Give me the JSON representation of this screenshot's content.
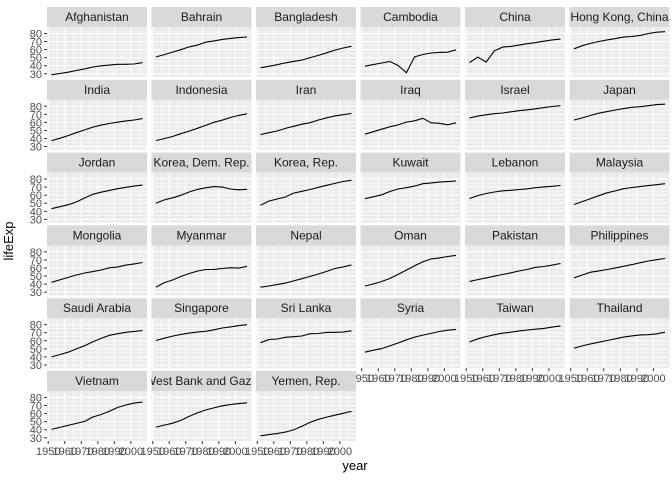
{
  "chart_data": {
    "type": "line",
    "title": "",
    "xlabel": "year",
    "ylabel": "lifeExp",
    "facet_by": "country",
    "ncol": 6,
    "xlim": [
      1952,
      2007
    ],
    "ylim": [
      26,
      88
    ],
    "x_ticks": [
      1950,
      1960,
      1970,
      1980,
      1990,
      2000
    ],
    "y_ticks": [
      30,
      40,
      50,
      60,
      70,
      80
    ],
    "grid": true,
    "x": [
      1952,
      1957,
      1962,
      1967,
      1972,
      1977,
      1982,
      1987,
      1992,
      1997,
      2002,
      2007
    ],
    "series": [
      {
        "name": "Afghanistan",
        "values": [
          28.8,
          30.3,
          32.0,
          34.0,
          36.1,
          38.4,
          39.9,
          40.8,
          41.7,
          41.8,
          42.1,
          43.8
        ]
      },
      {
        "name": "Bahrain",
        "values": [
          50.9,
          53.8,
          56.9,
          59.9,
          63.3,
          65.6,
          69.1,
          70.8,
          72.6,
          73.9,
          74.8,
          75.6
        ]
      },
      {
        "name": "Bangladesh",
        "values": [
          37.5,
          39.3,
          41.2,
          43.5,
          45.3,
          46.9,
          50.0,
          52.8,
          56.0,
          59.4,
          62.0,
          64.1
        ]
      },
      {
        "name": "Cambodia",
        "values": [
          39.4,
          41.4,
          43.4,
          45.4,
          40.3,
          31.2,
          51.0,
          53.9,
          55.8,
          56.5,
          56.8,
          59.7
        ]
      },
      {
        "name": "China",
        "values": [
          44.0,
          50.5,
          44.5,
          58.4,
          63.1,
          64.0,
          65.5,
          67.3,
          68.7,
          70.4,
          72.0,
          73.0
        ]
      },
      {
        "name": "Hong Kong, China",
        "values": [
          61.0,
          64.8,
          67.7,
          70.0,
          72.0,
          73.6,
          75.5,
          76.2,
          77.6,
          80.0,
          81.5,
          82.2
        ]
      },
      {
        "name": "India",
        "values": [
          37.4,
          40.2,
          43.6,
          47.2,
          50.7,
          54.2,
          56.6,
          58.6,
          60.2,
          61.8,
          62.9,
          64.7
        ]
      },
      {
        "name": "Indonesia",
        "values": [
          37.5,
          39.9,
          42.5,
          46.0,
          49.2,
          52.7,
          56.2,
          60.1,
          62.7,
          66.0,
          68.6,
          70.7
        ]
      },
      {
        "name": "Iran",
        "values": [
          44.9,
          47.2,
          49.3,
          52.5,
          55.2,
          57.7,
          59.6,
          63.0,
          65.7,
          68.0,
          69.5,
          71.0
        ]
      },
      {
        "name": "Iraq",
        "values": [
          45.3,
          48.4,
          51.5,
          54.5,
          56.9,
          60.4,
          62.0,
          65.0,
          59.5,
          58.8,
          57.0,
          59.5
        ]
      },
      {
        "name": "Israel",
        "values": [
          65.4,
          67.8,
          69.4,
          70.8,
          71.6,
          73.1,
          74.5,
          75.6,
          76.9,
          78.3,
          79.7,
          80.7
        ]
      },
      {
        "name": "Japan",
        "values": [
          63.0,
          65.5,
          68.7,
          71.4,
          73.4,
          75.4,
          77.1,
          78.7,
          79.4,
          80.7,
          82.0,
          82.6
        ]
      },
      {
        "name": "Jordan",
        "values": [
          43.2,
          45.7,
          48.1,
          51.6,
          56.5,
          61.1,
          63.7,
          65.9,
          68.0,
          69.8,
          71.3,
          72.5
        ]
      },
      {
        "name": "Korea, Dem. Rep.",
        "values": [
          50.1,
          54.1,
          56.7,
          59.9,
          64.0,
          67.2,
          69.1,
          70.6,
          69.98,
          67.7,
          66.7,
          67.3
        ]
      },
      {
        "name": "Korea, Rep.",
        "values": [
          47.5,
          52.7,
          55.3,
          57.7,
          62.6,
          64.8,
          67.1,
          69.8,
          72.2,
          74.6,
          77.0,
          78.6
        ]
      },
      {
        "name": "Kuwait",
        "values": [
          55.6,
          58.0,
          60.5,
          64.6,
          67.7,
          69.3,
          71.3,
          74.2,
          75.2,
          76.2,
          76.9,
          77.6
        ]
      },
      {
        "name": "Lebanon",
        "values": [
          55.9,
          59.5,
          62.1,
          63.9,
          65.4,
          66.1,
          67.0,
          67.9,
          69.3,
          70.3,
          71.0,
          72.0
        ]
      },
      {
        "name": "Malaysia",
        "values": [
          48.5,
          52.1,
          55.7,
          59.4,
          63.0,
          65.3,
          68.0,
          69.5,
          70.7,
          71.9,
          73.0,
          74.2
        ]
      },
      {
        "name": "Mongolia",
        "values": [
          42.2,
          45.2,
          48.3,
          51.3,
          53.8,
          55.5,
          57.5,
          60.2,
          61.3,
          63.6,
          65.0,
          66.8
        ]
      },
      {
        "name": "Myanmar",
        "values": [
          36.3,
          41.9,
          45.1,
          49.4,
          53.1,
          56.1,
          58.1,
          58.3,
          59.3,
          60.3,
          59.9,
          62.1
        ]
      },
      {
        "name": "Nepal",
        "values": [
          36.2,
          37.7,
          39.4,
          41.2,
          43.97,
          46.7,
          49.6,
          52.5,
          55.7,
          59.4,
          61.3,
          63.8
        ]
      },
      {
        "name": "Oman",
        "values": [
          37.6,
          40.1,
          43.2,
          46.99,
          52.1,
          57.4,
          62.7,
          67.7,
          71.2,
          72.5,
          74.2,
          75.6
        ]
      },
      {
        "name": "Pakistan",
        "values": [
          43.4,
          45.6,
          47.7,
          49.8,
          51.9,
          54.0,
          56.2,
          58.2,
          60.8,
          61.8,
          63.6,
          65.5
        ]
      },
      {
        "name": "Philippines",
        "values": [
          47.8,
          51.3,
          54.8,
          56.4,
          58.1,
          60.1,
          62.1,
          64.2,
          66.5,
          68.6,
          70.3,
          71.7
        ]
      },
      {
        "name": "Saudi Arabia",
        "values": [
          40.0,
          42.9,
          45.9,
          49.9,
          53.9,
          58.7,
          63.0,
          66.8,
          68.8,
          70.5,
          71.6,
          72.8
        ]
      },
      {
        "name": "Singapore",
        "values": [
          60.4,
          63.2,
          65.8,
          67.9,
          69.5,
          70.8,
          71.8,
          73.6,
          75.8,
          77.2,
          78.8,
          80.0
        ]
      },
      {
        "name": "Sri Lanka",
        "values": [
          57.6,
          61.5,
          62.2,
          64.3,
          65.0,
          65.9,
          68.8,
          69.0,
          70.4,
          70.5,
          70.8,
          72.4
        ]
      },
      {
        "name": "Syria",
        "values": [
          45.9,
          48.3,
          50.3,
          53.7,
          57.3,
          61.2,
          64.6,
          67.0,
          69.2,
          71.5,
          73.1,
          74.1
        ]
      },
      {
        "name": "Taiwan",
        "values": [
          58.5,
          62.4,
          65.2,
          67.5,
          69.4,
          70.6,
          72.2,
          73.4,
          74.3,
          75.3,
          76.99,
          78.4
        ]
      },
      {
        "name": "Thailand",
        "values": [
          50.8,
          53.6,
          56.1,
          58.3,
          60.4,
          62.5,
          64.6,
          66.1,
          67.3,
          67.5,
          68.6,
          70.6
        ]
      },
      {
        "name": "Vietnam",
        "values": [
          40.4,
          42.9,
          45.4,
          47.8,
          50.3,
          55.8,
          58.8,
          62.8,
          67.7,
          70.7,
          73.0,
          74.2
        ]
      },
      {
        "name": "West Bank and Gaza",
        "values": [
          43.2,
          45.7,
          48.1,
          51.6,
          56.5,
          60.8,
          64.4,
          67.0,
          69.7,
          71.1,
          72.4,
          73.4
        ]
      },
      {
        "name": "Yemen, Rep.",
        "values": [
          32.5,
          33.97,
          35.2,
          37.0,
          39.8,
          44.2,
          49.1,
          52.9,
          55.6,
          58.0,
          60.3,
          62.7
        ]
      }
    ]
  }
}
